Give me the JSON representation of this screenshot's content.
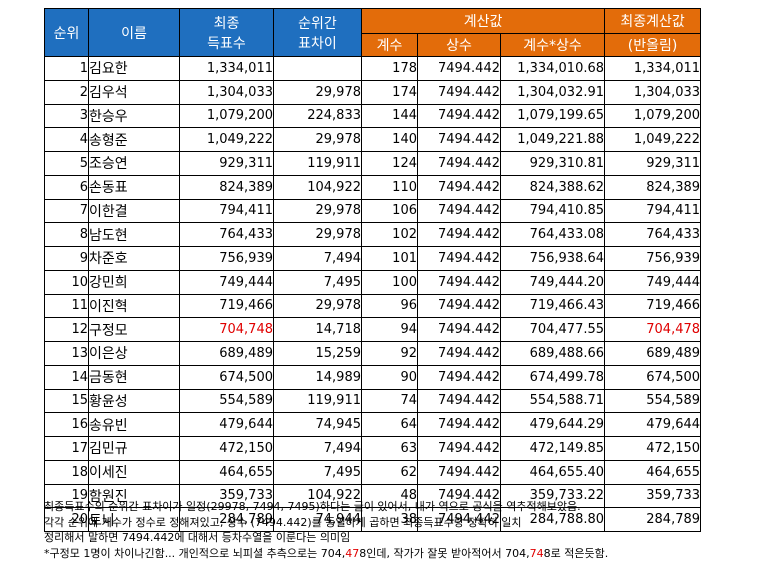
{
  "headers": {
    "rank": "순위",
    "name": "이름",
    "final_votes": [
      "최종",
      "득표수"
    ],
    "rank_gap": [
      "순위간",
      "표차이"
    ],
    "calc_group": "계산값",
    "coef": "계수",
    "const": "상수",
    "coef_x_const": "계수*상수",
    "final_calc": [
      "최종계산값",
      "(반올림)"
    ]
  },
  "rows": [
    {
      "rank": "1",
      "name": "김요한",
      "votes": "1,334,011",
      "gap": "",
      "coef": "178",
      "const": "7494.442",
      "product": "1,334,010.68",
      "rounded": "1,334,011"
    },
    {
      "rank": "2",
      "name": "김우석",
      "votes": "1,304,033",
      "gap": "29,978",
      "coef": "174",
      "const": "7494.442",
      "product": "1,304,032.91",
      "rounded": "1,304,033"
    },
    {
      "rank": "3",
      "name": "한승우",
      "votes": "1,079,200",
      "gap": "224,833",
      "coef": "144",
      "const": "7494.442",
      "product": "1,079,199.65",
      "rounded": "1,079,200"
    },
    {
      "rank": "4",
      "name": "송형준",
      "votes": "1,049,222",
      "gap": "29,978",
      "coef": "140",
      "const": "7494.442",
      "product": "1,049,221.88",
      "rounded": "1,049,222"
    },
    {
      "rank": "5",
      "name": "조승연",
      "votes": "929,311",
      "gap": "119,911",
      "coef": "124",
      "const": "7494.442",
      "product": "929,310.81",
      "rounded": "929,311"
    },
    {
      "rank": "6",
      "name": "손동표",
      "votes": "824,389",
      "gap": "104,922",
      "coef": "110",
      "const": "7494.442",
      "product": "824,388.62",
      "rounded": "824,389"
    },
    {
      "rank": "7",
      "name": "이한결",
      "votes": "794,411",
      "gap": "29,978",
      "coef": "106",
      "const": "7494.442",
      "product": "794,410.85",
      "rounded": "794,411"
    },
    {
      "rank": "8",
      "name": "남도현",
      "votes": "764,433",
      "gap": "29,978",
      "coef": "102",
      "const": "7494.442",
      "product": "764,433.08",
      "rounded": "764,433"
    },
    {
      "rank": "9",
      "name": "차준호",
      "votes": "756,939",
      "gap": "7,494",
      "coef": "101",
      "const": "7494.442",
      "product": "756,938.64",
      "rounded": "756,939"
    },
    {
      "rank": "10",
      "name": "강민희",
      "votes": "749,444",
      "gap": "7,495",
      "coef": "100",
      "const": "7494.442",
      "product": "749,444.20",
      "rounded": "749,444"
    },
    {
      "rank": "11",
      "name": "이진혁",
      "votes": "719,466",
      "gap": "29,978",
      "coef": "96",
      "const": "7494.442",
      "product": "719,466.43",
      "rounded": "719,466"
    },
    {
      "rank": "12",
      "name": "구정모",
      "votes": "704,748",
      "gap": "14,718",
      "coef": "94",
      "const": "7494.442",
      "product": "704,477.55",
      "rounded": "704,478",
      "highlight": true
    },
    {
      "rank": "13",
      "name": "이은상",
      "votes": "689,489",
      "gap": "15,259",
      "coef": "92",
      "const": "7494.442",
      "product": "689,488.66",
      "rounded": "689,489"
    },
    {
      "rank": "14",
      "name": "금동현",
      "votes": "674,500",
      "gap": "14,989",
      "coef": "90",
      "const": "7494.442",
      "product": "674,499.78",
      "rounded": "674,500"
    },
    {
      "rank": "15",
      "name": "황윤성",
      "votes": "554,589",
      "gap": "119,911",
      "coef": "74",
      "const": "7494.442",
      "product": "554,588.71",
      "rounded": "554,589"
    },
    {
      "rank": "16",
      "name": "송유빈",
      "votes": "479,644",
      "gap": "74,945",
      "coef": "64",
      "const": "7494.442",
      "product": "479,644.29",
      "rounded": "479,644"
    },
    {
      "rank": "17",
      "name": "김민규",
      "votes": "472,150",
      "gap": "7,494",
      "coef": "63",
      "const": "7494.442",
      "product": "472,149.85",
      "rounded": "472,150"
    },
    {
      "rank": "18",
      "name": "이세진",
      "votes": "464,655",
      "gap": "7,495",
      "coef": "62",
      "const": "7494.442",
      "product": "464,655.40",
      "rounded": "464,655"
    },
    {
      "rank": "19",
      "name": "함원진",
      "votes": "359,733",
      "gap": "104,922",
      "coef": "48",
      "const": "7494.442",
      "product": "359,733.22",
      "rounded": "359,733"
    },
    {
      "rank": "20",
      "name": "토니",
      "votes": "284,789",
      "gap": "74,944",
      "coef": "38",
      "const": "7494.442",
      "product": "284,788.80",
      "rounded": "284,789"
    }
  ],
  "notes": {
    "line1": "최종득표수의 순위간 표차이가 일정(29978, 7494, 7495)하다는 글이 있어서, 내가 역으로 공식을 역추적해보았음.",
    "line2": "각각 순위에 계수가 정수로 정해져있고, 상수 (7494.442)를 동일하게 곱하면 최종득표수랑 정확히 일치",
    "line3": "정리해서 말하면 7494.442에 대해서 등차수열을 이룬다는 의미임",
    "line4_a": "*구정모 1명이  차이나긴함... 개인적으로 뇌피셜 추측으로는 704,",
    "line4_b": "47",
    "line4_c": "8인데, 작가가 잘못 받아적어서 704,",
    "line4_d": "74",
    "line4_e": "8로 적은듯함."
  }
}
